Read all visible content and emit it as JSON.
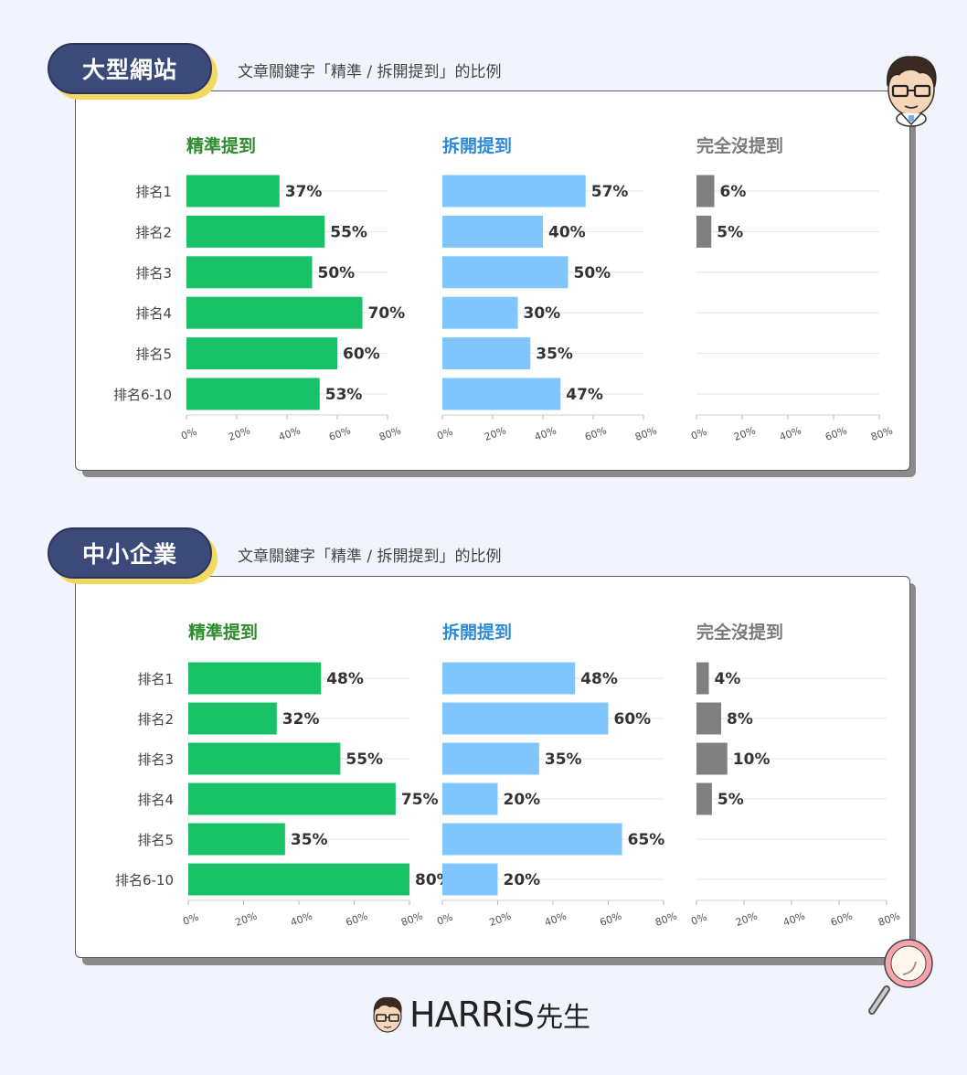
{
  "subtitle": "文章關鍵字「精準 / 拆開提到」的比例",
  "brand": {
    "name": "HARRiS",
    "suffix": "先生"
  },
  "colors": {
    "exact": "#19c267",
    "split": "#80c6fc",
    "none": "#808080",
    "exact_title": "#2e8b2e",
    "split_title": "#2d8ad8",
    "none_title": "#7a7a7a"
  },
  "chart_data": [
    {
      "type": "bar",
      "title": "大型網站",
      "categories": [
        "排名1",
        "排名2",
        "排名3",
        "排名4",
        "排名5",
        "排名6-10"
      ],
      "xlim": [
        0,
        80
      ],
      "xticks": [
        "0%",
        "20%",
        "40%",
        "60%",
        "80%"
      ],
      "series": [
        {
          "name": "精準提到",
          "values": [
            37,
            55,
            50,
            70,
            60,
            53
          ]
        },
        {
          "name": "拆開提到",
          "values": [
            57,
            40,
            50,
            30,
            35,
            47
          ]
        },
        {
          "name": "完全沒提到",
          "values": [
            6,
            5,
            null,
            null,
            null,
            null
          ]
        }
      ]
    },
    {
      "type": "bar",
      "title": "中小企業",
      "categories": [
        "排名1",
        "排名2",
        "排名3",
        "排名4",
        "排名5",
        "排名6-10"
      ],
      "xlim": [
        0,
        80
      ],
      "xticks": [
        "0%",
        "20%",
        "40%",
        "60%",
        "80%"
      ],
      "series": [
        {
          "name": "精準提到",
          "values": [
            48,
            32,
            55,
            75,
            35,
            80
          ]
        },
        {
          "name": "拆開提到",
          "values": [
            48,
            60,
            35,
            20,
            65,
            20
          ]
        },
        {
          "name": "完全沒提到",
          "values": [
            4,
            8,
            10,
            5,
            null,
            null
          ]
        }
      ]
    }
  ]
}
